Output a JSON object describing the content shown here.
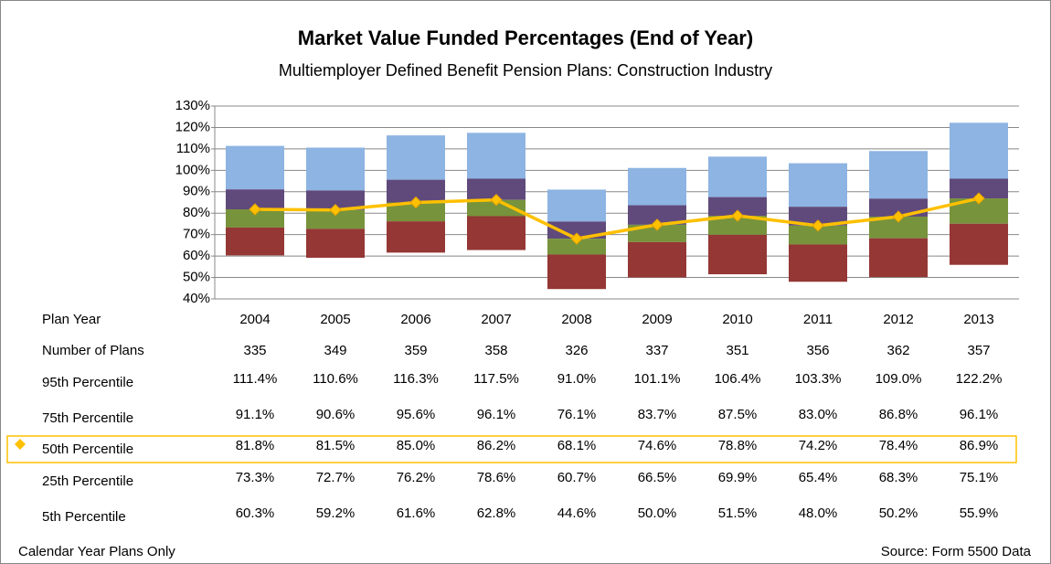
{
  "chart_data": {
    "type": "floating_bar",
    "title": "Market Value Funded Percentages (End of Year)",
    "subtitle": "Multiemployer Defined Benefit Pension Plans: Construction Industry",
    "categories": [
      "2004",
      "2005",
      "2006",
      "2007",
      "2008",
      "2009",
      "2010",
      "2011",
      "2012",
      "2013"
    ],
    "category_label": "Plan Year",
    "count_label": "Number of Plans",
    "counts": [
      335,
      349,
      359,
      358,
      326,
      337,
      351,
      356,
      362,
      357
    ],
    "series": [
      {
        "name": "95th Percentile",
        "color": "#8db4e2",
        "values": [
          111.4,
          110.6,
          116.3,
          117.5,
          91.0,
          101.1,
          106.4,
          103.3,
          109.0,
          122.2
        ],
        "value_labels": [
          "111.4%",
          "110.6%",
          "116.3%",
          "117.5%",
          "91.0%",
          "101.1%",
          "106.4%",
          "103.3%",
          "109.0%",
          "122.2%"
        ]
      },
      {
        "name": "75th Percentile",
        "color": "#604a7b",
        "values": [
          91.1,
          90.6,
          95.6,
          96.1,
          76.1,
          83.7,
          87.5,
          83.0,
          86.8,
          96.1
        ],
        "value_labels": [
          "91.1%",
          "90.6%",
          "95.6%",
          "96.1%",
          "76.1%",
          "83.7%",
          "87.5%",
          "83.0%",
          "86.8%",
          "96.1%"
        ]
      },
      {
        "name": "50th Percentile",
        "color": "#77933c",
        "line_color": "#ffc000",
        "values": [
          81.8,
          81.5,
          85.0,
          86.2,
          68.1,
          74.6,
          78.8,
          74.2,
          78.4,
          86.9
        ],
        "value_labels": [
          "81.8%",
          "81.5%",
          "85.0%",
          "86.2%",
          "68.1%",
          "74.6%",
          "78.8%",
          "74.2%",
          "78.4%",
          "86.9%"
        ]
      },
      {
        "name": "25th Percentile",
        "color": "#953735",
        "values": [
          73.3,
          72.7,
          76.2,
          78.6,
          60.7,
          66.5,
          69.9,
          65.4,
          68.3,
          75.1
        ],
        "value_labels": [
          "73.3%",
          "72.7%",
          "76.2%",
          "78.6%",
          "60.7%",
          "66.5%",
          "69.9%",
          "65.4%",
          "68.3%",
          "75.1%"
        ]
      },
      {
        "name": "5th Percentile",
        "values": [
          60.3,
          59.2,
          61.6,
          62.8,
          44.6,
          50.0,
          51.5,
          48.0,
          50.2,
          55.9
        ],
        "value_labels": [
          "60.3%",
          "59.2%",
          "61.6%",
          "62.8%",
          "44.6%",
          "50.0%",
          "51.5%",
          "48.0%",
          "50.2%",
          "55.9%"
        ]
      }
    ],
    "ylim": [
      40,
      130
    ],
    "yticks": [
      {
        "value": 40,
        "label": "40%"
      },
      {
        "value": 50,
        "label": "50%"
      },
      {
        "value": 60,
        "label": "60%"
      },
      {
        "value": 70,
        "label": "70%"
      },
      {
        "value": 80,
        "label": "80%"
      },
      {
        "value": 90,
        "label": "90%"
      },
      {
        "value": 100,
        "label": "100%"
      },
      {
        "value": 110,
        "label": "110%"
      },
      {
        "value": 120,
        "label": "120%"
      },
      {
        "value": 130,
        "label": "130%"
      }
    ],
    "grid": true,
    "footnote": "Calendar Year Plans Only",
    "source": "Source:  Form 5500 Data"
  }
}
